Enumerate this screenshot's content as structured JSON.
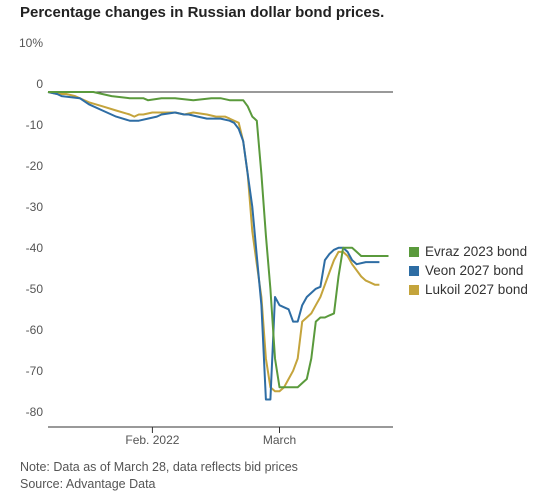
{
  "chart_data": {
    "type": "line",
    "title": "Percentage changes in Russian dollar bond prices.",
    "y_ticks": [
      "10%",
      "0",
      "-10",
      "-20",
      "-30",
      "-40",
      "-50",
      "-60",
      "-70",
      "-80"
    ],
    "y_tick_values": [
      10,
      0,
      -10,
      -20,
      -30,
      -40,
      -50,
      -60,
      -70,
      -80
    ],
    "ylim": [
      -80,
      10
    ],
    "x_ticks": [
      {
        "label": "Feb. 2022",
        "day": 23
      },
      {
        "label": "March",
        "day": 51
      }
    ],
    "x_range_days": [
      0,
      76
    ],
    "grid": false,
    "legend_position": "right",
    "series": [
      {
        "name": "Evraz 2023 bond",
        "color": "#5a9a3c",
        "points": [
          [
            0,
            0
          ],
          [
            4,
            0
          ],
          [
            7,
            0
          ],
          [
            10,
            0
          ],
          [
            14,
            -1
          ],
          [
            18,
            -1.5
          ],
          [
            21,
            -1.5
          ],
          [
            22,
            -2
          ],
          [
            25,
            -1.5
          ],
          [
            28,
            -1.5
          ],
          [
            32,
            -2
          ],
          [
            36,
            -1.5
          ],
          [
            38,
            -1.5
          ],
          [
            40,
            -2
          ],
          [
            43,
            -2
          ],
          [
            44,
            -3.5
          ],
          [
            45,
            -6
          ],
          [
            46,
            -7
          ],
          [
            47,
            -20
          ],
          [
            48,
            -35
          ],
          [
            49,
            -48
          ],
          [
            50,
            -65
          ],
          [
            51,
            -72
          ],
          [
            53,
            -72
          ],
          [
            55,
            -72
          ],
          [
            56,
            -71
          ],
          [
            57,
            -70
          ],
          [
            58,
            -65
          ],
          [
            59,
            -56
          ],
          [
            60,
            -55
          ],
          [
            61,
            -55
          ],
          [
            62,
            -54.5
          ],
          [
            63,
            -54
          ],
          [
            64,
            -45
          ],
          [
            65,
            -38
          ],
          [
            66,
            -38
          ],
          [
            67,
            -38
          ],
          [
            68,
            -39
          ],
          [
            69,
            -40
          ],
          [
            71,
            -40
          ],
          [
            73,
            -40
          ],
          [
            75,
            -40
          ]
        ]
      },
      {
        "name": "Veon 2027 bond",
        "color": "#2e6da4",
        "points": [
          [
            0,
            0
          ],
          [
            2,
            -0.5
          ],
          [
            3,
            -1
          ],
          [
            7,
            -1.5
          ],
          [
            9,
            -3
          ],
          [
            12,
            -4.5
          ],
          [
            15,
            -6
          ],
          [
            18,
            -7
          ],
          [
            20,
            -7
          ],
          [
            22,
            -6.5
          ],
          [
            24,
            -6
          ],
          [
            25,
            -5.5
          ],
          [
            28,
            -5
          ],
          [
            30,
            -5.5
          ],
          [
            31,
            -5.5
          ],
          [
            33,
            -6
          ],
          [
            35,
            -6.5
          ],
          [
            38,
            -6.5
          ],
          [
            40,
            -7
          ],
          [
            41,
            -7.5
          ],
          [
            42,
            -9
          ],
          [
            43,
            -12
          ],
          [
            44,
            -20
          ],
          [
            45,
            -28
          ],
          [
            46,
            -40
          ],
          [
            47,
            -52
          ],
          [
            48,
            -75
          ],
          [
            49,
            -75
          ],
          [
            50,
            -50
          ],
          [
            51,
            -52
          ],
          [
            52,
            -52.5
          ],
          [
            53,
            -53
          ],
          [
            54,
            -56
          ],
          [
            55,
            -56
          ],
          [
            56,
            -52
          ],
          [
            57,
            -50
          ],
          [
            58,
            -49
          ],
          [
            59,
            -48
          ],
          [
            60,
            -47.5
          ],
          [
            61,
            -41
          ],
          [
            62,
            -39.5
          ],
          [
            63,
            -38.5
          ],
          [
            64,
            -38
          ],
          [
            65,
            -38
          ],
          [
            66,
            -39
          ],
          [
            67,
            -41
          ],
          [
            68,
            -42
          ],
          [
            70,
            -41.5
          ],
          [
            72,
            -41.5
          ],
          [
            73,
            -41.5
          ]
        ]
      },
      {
        "name": "Lukoil 2027 bond",
        "color": "#c4a43c",
        "points": [
          [
            0,
            0
          ],
          [
            2,
            -0.5
          ],
          [
            4,
            -0.5
          ],
          [
            6,
            -1
          ],
          [
            9,
            -2.5
          ],
          [
            12,
            -3.5
          ],
          [
            15,
            -4.5
          ],
          [
            18,
            -5.5
          ],
          [
            19,
            -6
          ],
          [
            20,
            -5.5
          ],
          [
            21,
            -5.5
          ],
          [
            23,
            -5
          ],
          [
            26,
            -5
          ],
          [
            28,
            -5
          ],
          [
            30,
            -5.5
          ],
          [
            32,
            -5
          ],
          [
            35,
            -5.5
          ],
          [
            37,
            -6
          ],
          [
            39,
            -6
          ],
          [
            40,
            -6.5
          ],
          [
            42,
            -7.5
          ],
          [
            43,
            -12
          ],
          [
            44,
            -20
          ],
          [
            45,
            -34
          ],
          [
            46,
            -42
          ],
          [
            47,
            -50
          ],
          [
            48,
            -65
          ],
          [
            49,
            -72
          ],
          [
            50,
            -73
          ],
          [
            51,
            -73
          ],
          [
            52,
            -72
          ],
          [
            53,
            -70
          ],
          [
            54,
            -68
          ],
          [
            55,
            -65
          ],
          [
            56,
            -56
          ],
          [
            57,
            -55
          ],
          [
            58,
            -54
          ],
          [
            59,
            -52
          ],
          [
            60,
            -50
          ],
          [
            61,
            -47
          ],
          [
            62,
            -44
          ],
          [
            63,
            -41
          ],
          [
            64,
            -39
          ],
          [
            65,
            -39
          ],
          [
            66,
            -40
          ],
          [
            67,
            -42
          ],
          [
            68,
            -43.5
          ],
          [
            69,
            -45
          ],
          [
            70,
            -46
          ],
          [
            71,
            -46.5
          ],
          [
            72,
            -47
          ],
          [
            73,
            -47
          ]
        ]
      }
    ]
  },
  "notes": {
    "note": "Note: Data as of March 28, data reflects bid prices",
    "source": "Source: Advantage Data"
  }
}
